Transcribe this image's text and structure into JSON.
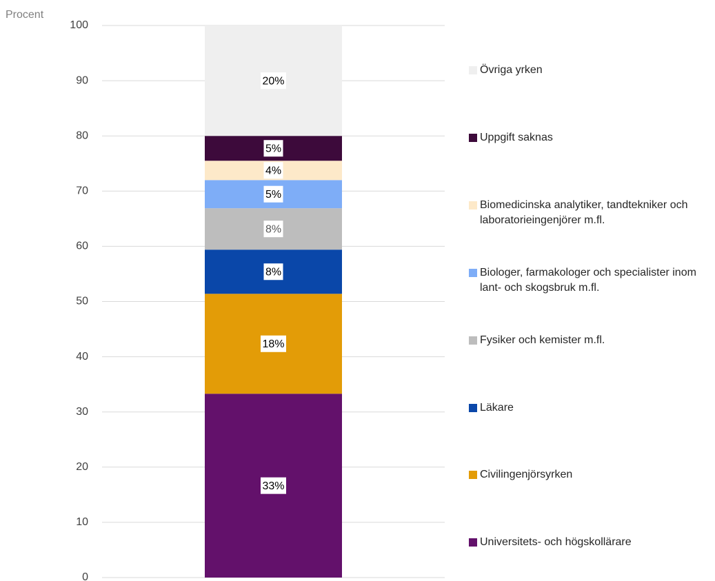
{
  "chart_data": {
    "type": "stacked_bar",
    "y_label": "Procent",
    "categories": [
      null
    ],
    "ylim": [
      0,
      100
    ],
    "yticks": [
      0,
      10,
      20,
      30,
      40,
      50,
      60,
      70,
      80,
      90,
      100
    ],
    "grid": true,
    "legend": "right",
    "series": [
      {
        "name": "Universitets- och högskollärare",
        "color": "#63116b",
        "values": [
          33.3
        ],
        "value_labels": [
          "33%"
        ]
      },
      {
        "name": "Civilingenjörsyrken",
        "color": "#e39c07",
        "values": [
          18.1
        ],
        "value_labels": [
          "18%"
        ]
      },
      {
        "name": "Läkare",
        "color": "#0a47a9",
        "values": [
          8.0
        ],
        "value_labels": [
          "8%"
        ]
      },
      {
        "name": "Fysiker och kemister m.fl.",
        "color": "#bdbdbd",
        "values": [
          7.5
        ],
        "value_labels": [
          "8%"
        ]
      },
      {
        "name": "Biologer, farmakologer och specialister inom lant- och skogsbruk m.fl.",
        "color": "#7eadf7",
        "values": [
          5.1
        ],
        "value_labels": [
          "5%"
        ]
      },
      {
        "name": "Biomedicinska analytiker, tandtekniker och laboratorieingenjörer m.fl.",
        "color": "#fde9c9",
        "values": [
          3.5
        ],
        "value_labels": [
          "4%"
        ]
      },
      {
        "name": "Uppgift saknas",
        "color": "#3d0a3b",
        "values": [
          4.5
        ],
        "value_labels": [
          "5%"
        ]
      },
      {
        "name": "Övriga yrken",
        "color": "#efefef",
        "values": [
          20.0
        ],
        "value_labels": [
          "20%"
        ]
      }
    ]
  }
}
